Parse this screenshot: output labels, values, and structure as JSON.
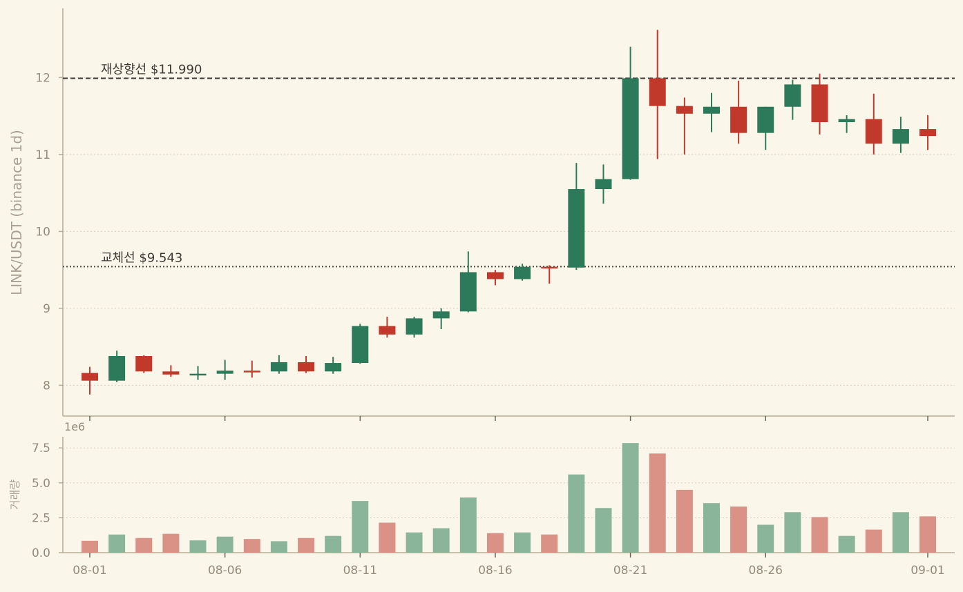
{
  "chart_data": {
    "type": "candlestick",
    "ylabel": "LINK/USDT (binance 1d)",
    "volume_ylabel": "거래량",
    "volume_scale_label": "1e6",
    "ylim": [
      7.6,
      12.9
    ],
    "volume_ylim": [
      0,
      8.3
    ],
    "y_ticks": [
      8,
      9,
      10,
      11,
      12
    ],
    "volume_ticks": [
      "0.0",
      "2.5",
      "5.0",
      "7.5"
    ],
    "x_tick_labels": [
      {
        "index": 0,
        "label": "08-01"
      },
      {
        "index": 5,
        "label": "08-06"
      },
      {
        "index": 10,
        "label": "08-11"
      },
      {
        "index": 15,
        "label": "08-16"
      },
      {
        "index": 20,
        "label": "08-21"
      },
      {
        "index": 25,
        "label": "08-26"
      },
      {
        "index": 31,
        "label": "09-01"
      }
    ],
    "reference_lines": [
      {
        "label": "재상향선 $11.990",
        "value": 11.99,
        "style": "dashed"
      },
      {
        "label": "교체선 $9.543",
        "value": 9.543,
        "style": "dotted"
      }
    ],
    "colors": {
      "up": "#2d7a5a",
      "down": "#c0392b",
      "up_volume": "#8bb59b",
      "down_volume": "#d99285",
      "background": "#fbf6ea"
    },
    "candles": [
      {
        "date": "08-01",
        "open": 8.16,
        "high": 8.24,
        "low": 7.88,
        "close": 8.06,
        "volume": 0.85
      },
      {
        "date": "08-02",
        "open": 8.06,
        "high": 8.45,
        "low": 8.04,
        "close": 8.38,
        "volume": 1.3
      },
      {
        "date": "08-03",
        "open": 8.38,
        "high": 8.39,
        "low": 8.16,
        "close": 8.18,
        "volume": 1.05
      },
      {
        "date": "08-04",
        "open": 8.18,
        "high": 8.26,
        "low": 8.11,
        "close": 8.14,
        "volume": 1.35
      },
      {
        "date": "08-05",
        "open": 8.14,
        "high": 8.25,
        "low": 8.07,
        "close": 8.15,
        "volume": 0.88
      },
      {
        "date": "08-06",
        "open": 8.15,
        "high": 8.33,
        "low": 8.07,
        "close": 8.19,
        "volume": 1.15
      },
      {
        "date": "08-07",
        "open": 8.19,
        "high": 8.32,
        "low": 8.1,
        "close": 8.18,
        "volume": 0.98
      },
      {
        "date": "08-08",
        "open": 8.18,
        "high": 8.39,
        "low": 8.15,
        "close": 8.3,
        "volume": 0.82
      },
      {
        "date": "08-09",
        "open": 8.3,
        "high": 8.38,
        "low": 8.16,
        "close": 8.18,
        "volume": 1.05
      },
      {
        "date": "08-10",
        "open": 8.18,
        "high": 8.37,
        "low": 8.15,
        "close": 8.29,
        "volume": 1.2
      },
      {
        "date": "08-11",
        "open": 8.29,
        "high": 8.8,
        "low": 8.28,
        "close": 8.77,
        "volume": 3.7
      },
      {
        "date": "08-12",
        "open": 8.77,
        "high": 8.89,
        "low": 8.62,
        "close": 8.66,
        "volume": 2.15
      },
      {
        "date": "08-13",
        "open": 8.66,
        "high": 8.89,
        "low": 8.62,
        "close": 8.87,
        "volume": 1.45
      },
      {
        "date": "08-14",
        "open": 8.87,
        "high": 9.0,
        "low": 8.73,
        "close": 8.96,
        "volume": 1.75
      },
      {
        "date": "08-15",
        "open": 8.96,
        "high": 9.74,
        "low": 8.95,
        "close": 9.47,
        "volume": 3.95
      },
      {
        "date": "08-16",
        "open": 9.47,
        "high": 9.5,
        "low": 9.3,
        "close": 9.38,
        "volume": 1.4
      },
      {
        "date": "08-17",
        "open": 9.38,
        "high": 9.58,
        "low": 9.36,
        "close": 9.54,
        "volume": 1.45
      },
      {
        "date": "08-18",
        "open": 9.54,
        "high": 9.56,
        "low": 9.32,
        "close": 9.53,
        "volume": 1.3
      },
      {
        "date": "08-19",
        "open": 9.53,
        "high": 10.89,
        "low": 9.5,
        "close": 10.55,
        "volume": 5.6
      },
      {
        "date": "08-20",
        "open": 10.55,
        "high": 10.87,
        "low": 10.36,
        "close": 10.68,
        "volume": 3.2
      },
      {
        "date": "08-21",
        "open": 10.68,
        "high": 12.4,
        "low": 10.67,
        "close": 11.99,
        "volume": 7.85
      },
      {
        "date": "08-22",
        "open": 11.99,
        "high": 12.62,
        "low": 10.94,
        "close": 11.63,
        "volume": 7.1
      },
      {
        "date": "08-23",
        "open": 11.63,
        "high": 11.74,
        "low": 11.0,
        "close": 11.53,
        "volume": 4.5
      },
      {
        "date": "08-24",
        "open": 11.53,
        "high": 11.8,
        "low": 11.29,
        "close": 11.62,
        "volume": 3.55
      },
      {
        "date": "08-25",
        "open": 11.62,
        "high": 11.96,
        "low": 11.14,
        "close": 11.28,
        "volume": 3.3
      },
      {
        "date": "08-26",
        "open": 11.28,
        "high": 11.62,
        "low": 11.06,
        "close": 11.62,
        "volume": 2.0
      },
      {
        "date": "08-27",
        "open": 11.62,
        "high": 11.97,
        "low": 11.45,
        "close": 11.91,
        "volume": 2.9
      },
      {
        "date": "08-28",
        "open": 11.91,
        "high": 12.05,
        "low": 11.26,
        "close": 11.42,
        "volume": 2.55
      },
      {
        "date": "08-29",
        "open": 11.42,
        "high": 11.51,
        "low": 11.28,
        "close": 11.46,
        "volume": 1.2
      },
      {
        "date": "08-30",
        "open": 11.46,
        "high": 11.79,
        "low": 11.0,
        "close": 11.14,
        "volume": 1.65
      },
      {
        "date": "08-31",
        "open": 11.14,
        "high": 11.49,
        "low": 11.02,
        "close": 11.33,
        "volume": 2.9
      },
      {
        "date": "09-01",
        "open": 11.33,
        "high": 11.51,
        "low": 11.06,
        "close": 11.24,
        "volume": 2.6
      }
    ]
  }
}
